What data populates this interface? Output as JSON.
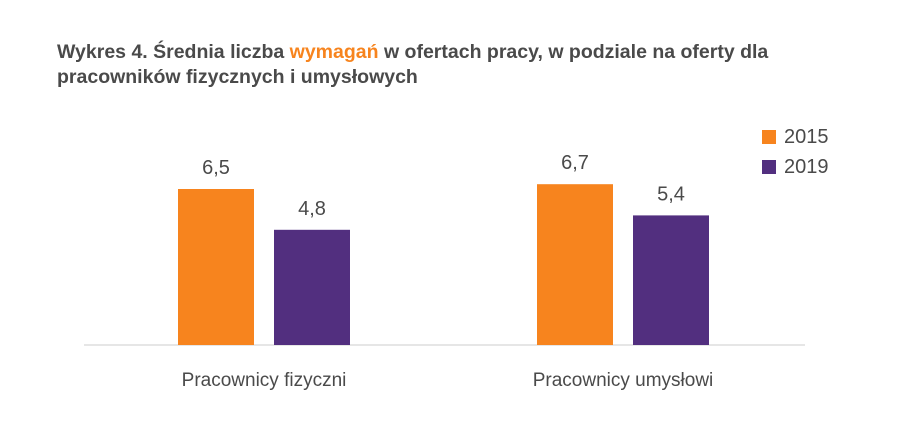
{
  "title": {
    "part1": "Wykres 4. Średnia liczba ",
    "highlight": "wymagań",
    "part2": " w ofertach pracy, w podziale na oferty dla pracowników fizycznych i umysłowych"
  },
  "colors": {
    "s2015": "#f7841e",
    "s2019": "#522f7f",
    "axis": "#cccccc",
    "text": "#4a4a4a"
  },
  "chart_data": {
    "type": "bar",
    "categories": [
      "Pracownicy fizyczni",
      "Pracownicy umysłowi"
    ],
    "series": [
      {
        "name": "2015",
        "values": [
          6.5,
          6.7
        ],
        "labels": [
          "6,5",
          "6,7"
        ]
      },
      {
        "name": "2019",
        "values": [
          4.8,
          5.4
        ],
        "labels": [
          "4,8",
          "5,4"
        ]
      }
    ],
    "ylim": [
      0,
      8
    ],
    "grid": false,
    "legend": "top-right"
  }
}
